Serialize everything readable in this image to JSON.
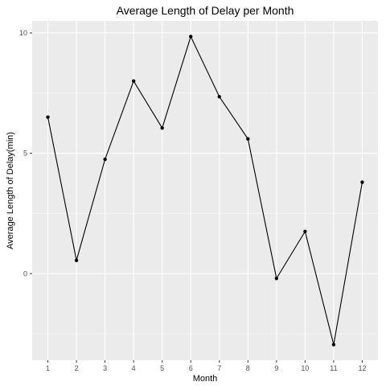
{
  "chart_data": {
    "type": "line",
    "title": "Average Length of Delay per Month",
    "xlabel": "Month",
    "ylabel": "Average Length of Delay(min)",
    "x": [
      1,
      2,
      3,
      4,
      5,
      6,
      7,
      8,
      9,
      10,
      11,
      12
    ],
    "series": [
      {
        "values": [
          6.5,
          0.55,
          4.75,
          8.0,
          6.05,
          9.85,
          7.35,
          5.6,
          -0.2,
          1.75,
          -2.95,
          3.8
        ]
      }
    ],
    "xlim": [
      0.45,
      12.55
    ],
    "ylim": [
      -3.6,
      10.5
    ],
    "xticks": [
      1,
      2,
      3,
      4,
      5,
      6,
      7,
      8,
      9,
      10,
      11,
      12
    ],
    "yticks": [
      0,
      5,
      10
    ],
    "grid": true,
    "legend": "none",
    "colors": {
      "panel": "#ebebeb",
      "grid": "#ffffff",
      "line": "#000000",
      "point": "#000000"
    }
  }
}
